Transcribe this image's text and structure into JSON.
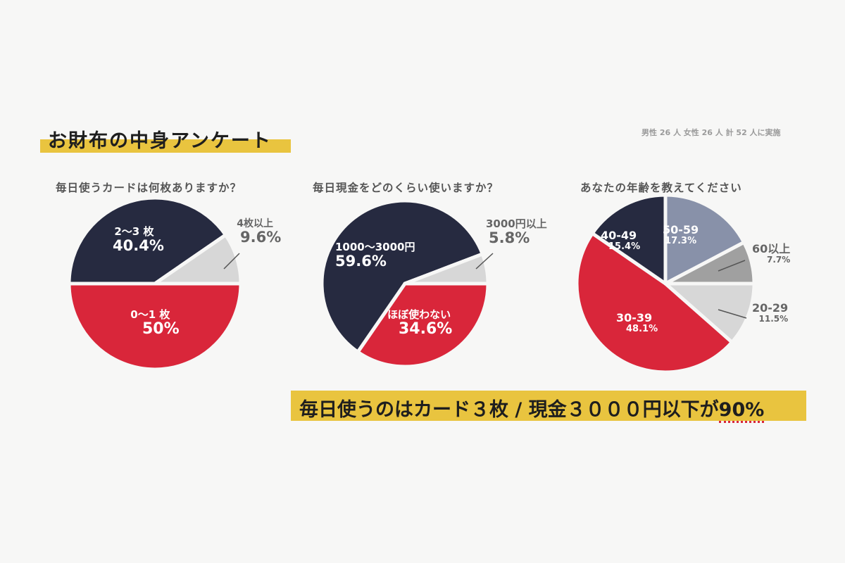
{
  "title": "お財布の中身アンケート",
  "note": "男性 26 人 女性 26 人 計 52 人に実施",
  "colors": {
    "navy": "#262a40",
    "red": "#d9263a",
    "light_gray": "#d7d7d7",
    "gray_blue": "#8891a9",
    "mid_gray": "#a0a0a0",
    "highlight": "#e9c43f"
  },
  "chart_data": [
    {
      "type": "pie",
      "title": "毎日使うカードは何枚ありますか？",
      "start": "3 o'clock",
      "direction": "clockwise",
      "slices": [
        {
          "label": "0〜1 枚",
          "value": 50,
          "value_label": "50%",
          "color": "#d9263a"
        },
        {
          "label": "2〜3 枚",
          "value": 40.4,
          "value_label": "40.4%",
          "color": "#262a40"
        },
        {
          "label": "4枚以上",
          "value": 9.6,
          "value_label": "9.6%",
          "color": "#d7d7d7"
        }
      ]
    },
    {
      "type": "pie",
      "title": "毎日現金をどのくらい使いますか？",
      "start": "3 o'clock",
      "direction": "clockwise",
      "slices": [
        {
          "label": "ほぼ使わない",
          "value": 34.6,
          "value_label": "34.6%",
          "color": "#d9263a"
        },
        {
          "label": "1000〜3000円",
          "value": 59.6,
          "value_label": "59.6%",
          "color": "#262a40"
        },
        {
          "label": "3000円以上",
          "value": 5.8,
          "value_label": "5.8%",
          "color": "#d7d7d7"
        }
      ]
    },
    {
      "type": "pie",
      "title": "あなたの年齢を教えてください",
      "start": "3 o'clock",
      "direction": "clockwise",
      "slices": [
        {
          "label": "20-29",
          "value": 11.5,
          "value_label": "11.5%",
          "color": "#d7d7d7"
        },
        {
          "label": "30-39",
          "value": 48.1,
          "value_label": "48.1%",
          "color": "#d9263a"
        },
        {
          "label": "40-49",
          "value": 15.4,
          "value_label": "15.4%",
          "color": "#262a40"
        },
        {
          "label": "50-59",
          "value": 17.3,
          "value_label": "17.3%",
          "color": "#8891a9"
        },
        {
          "label": "60以上",
          "value": 7.7,
          "value_label": "7.7%",
          "color": "#a0a0a0"
        }
      ]
    }
  ],
  "banner": {
    "text": "毎日使うのはカード３枚 / 現金３０００円以下が",
    "highlight": "90%"
  }
}
